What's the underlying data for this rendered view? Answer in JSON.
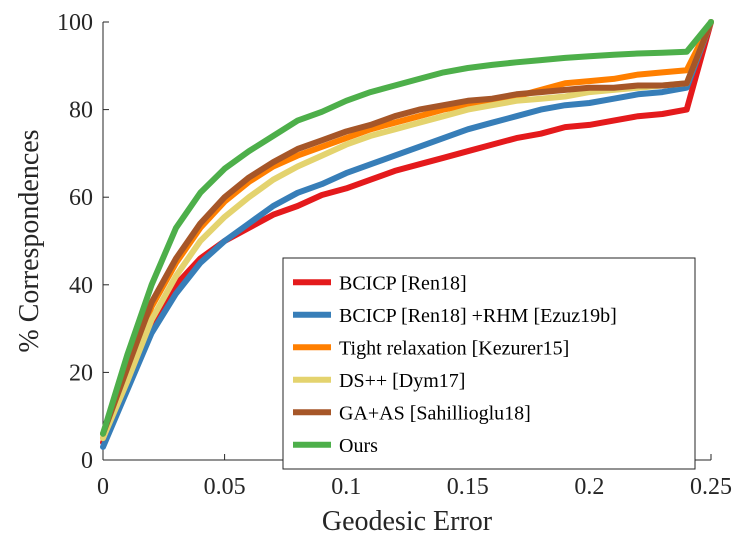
{
  "chart_data": {
    "type": "line",
    "title": "",
    "xlabel": "Geodesic Error",
    "ylabel": "% Correspondences",
    "xlim": [
      0,
      0.25
    ],
    "ylim": [
      0,
      100
    ],
    "xticks": [
      0,
      0.05,
      0.1,
      0.15,
      0.2,
      0.25
    ],
    "xtick_labels": [
      "0",
      "0.05",
      "0.1",
      "0.15",
      "0.2",
      "0.25"
    ],
    "yticks": [
      0,
      20,
      40,
      60,
      80,
      100
    ],
    "ytick_labels": [
      "0",
      "20",
      "40",
      "60",
      "80",
      "100"
    ],
    "grid": false,
    "legend_position": "bottom-right",
    "x": [
      0,
      0.01,
      0.02,
      0.03,
      0.04,
      0.05,
      0.06,
      0.07,
      0.08,
      0.09,
      0.1,
      0.11,
      0.12,
      0.13,
      0.14,
      0.15,
      0.16,
      0.17,
      0.18,
      0.19,
      0.2,
      0.21,
      0.22,
      0.23,
      0.24,
      0.25
    ],
    "series": [
      {
        "name": "BCICP [Ren18]",
        "color": "#e41a1c",
        "values": [
          4,
          17,
          31,
          40,
          46,
          50,
          53,
          56,
          58,
          60.5,
          62,
          64,
          66,
          67.5,
          69,
          70.5,
          72,
          73.5,
          74.5,
          76,
          76.5,
          77.5,
          78.5,
          79,
          80,
          100
        ]
      },
      {
        "name": "BCICP [Ren18] +RHM [Ezuz19b]",
        "color": "#377eb8",
        "values": [
          3,
          16,
          29,
          38,
          45,
          50,
          54,
          58,
          61,
          63,
          65.5,
          67.5,
          69.5,
          71.5,
          73.5,
          75.5,
          77,
          78.5,
          80,
          81,
          81.5,
          82.5,
          83.5,
          84,
          85,
          100
        ]
      },
      {
        "name": "Tight relaxation [Kezurer15]",
        "color": "#ff7f00",
        "values": [
          5,
          20,
          35,
          45,
          53,
          59,
          63.5,
          67,
          69.5,
          71.5,
          73.5,
          75.5,
          77,
          78.5,
          80,
          81,
          82,
          83,
          84.5,
          86,
          86.5,
          87,
          88,
          88.5,
          89,
          100
        ]
      },
      {
        "name": "DS++ [Dym17]",
        "color": "#e4d36e",
        "values": [
          5,
          18,
          32,
          42,
          50,
          55.5,
          60,
          64,
          67,
          69.5,
          72,
          74,
          75.5,
          77,
          78.5,
          80,
          81,
          82,
          82.5,
          83,
          84,
          84.5,
          85,
          85.5,
          86,
          100
        ]
      },
      {
        "name": "GA+AS [Sahillioglu18]",
        "color": "#a65628",
        "values": [
          6,
          21,
          36,
          46,
          54,
          60,
          64.5,
          68,
          71,
          73,
          75,
          76.5,
          78.5,
          80,
          81,
          82,
          82.5,
          83.5,
          84,
          84.5,
          85,
          85,
          85.5,
          85.5,
          86,
          100
        ]
      },
      {
        "name": "Ours",
        "color": "#4daf4a",
        "values": [
          6,
          24,
          40,
          53,
          61,
          66.5,
          70.5,
          74,
          77.5,
          79.5,
          82,
          84,
          85.5,
          87,
          88.5,
          89.5,
          90.2,
          90.8,
          91.3,
          91.8,
          92.2,
          92.5,
          92.8,
          93,
          93.2,
          100
        ]
      }
    ]
  }
}
